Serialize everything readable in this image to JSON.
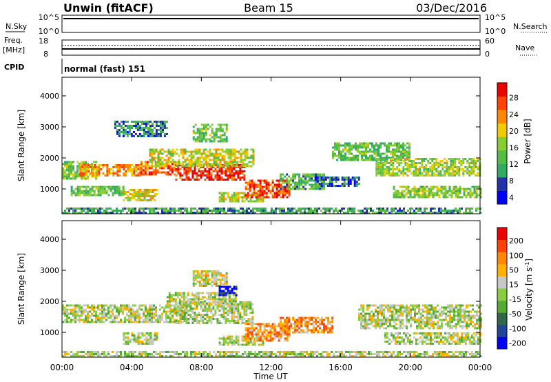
{
  "header": {
    "title": "Unwin (fitACF)",
    "beam": "Beam 15",
    "date": "03/Dec/2016"
  },
  "panels": {
    "nsky": {
      "label": "N.Sky",
      "ticks": [
        "10^5",
        "10^0"
      ],
      "right_ticks": [
        "10^5",
        "10^0"
      ],
      "right_label": "N.Search"
    },
    "freq": {
      "label_top": "Freq.",
      "label_bottom": "[MHz]",
      "ticks": [
        "18",
        "8"
      ],
      "right_ticks": [
        "60",
        "0"
      ],
      "right_label": "Nave"
    },
    "cpid": {
      "label": "CPID",
      "value": "normal (fast) 151"
    }
  },
  "colors": {
    "power_scale": [
      "#0000ff",
      "#2233aa",
      "#33aa66",
      "#55bb44",
      "#88cc33",
      "#eecc00",
      "#ff8800",
      "#ff4400",
      "#ee0000"
    ],
    "velocity_scale": [
      "#0000ff",
      "#224499",
      "#336644",
      "#55aa33",
      "#88cc44",
      "#c8c8c8",
      "#ffb000",
      "#ff8800",
      "#ff4400",
      "#ee0000"
    ]
  },
  "chart_data": [
    {
      "type": "heatmap",
      "name": "power",
      "ylabel": "Slant Range [km]",
      "yticks": [
        "4000",
        "3000",
        "2000",
        "1000"
      ],
      "ylim": [
        200,
        4600
      ],
      "colorbar": {
        "label": "Power [dB]",
        "ticks": [
          "28",
          "24",
          "20",
          "16",
          "12",
          "8",
          "4"
        ],
        "range": [
          0,
          32
        ]
      },
      "bands": [
        {
          "t0": 0.0,
          "t1": 2.0,
          "r0": 1300,
          "r1": 1900,
          "level": 0.45
        },
        {
          "t0": 1.0,
          "t1": 4.5,
          "r0": 1400,
          "r1": 1800,
          "level": 0.7
        },
        {
          "t0": 4.5,
          "t1": 6.5,
          "r0": 1450,
          "r1": 1900,
          "level": 0.8
        },
        {
          "t0": 6.5,
          "t1": 10.5,
          "r0": 1300,
          "r1": 1800,
          "level": 0.9
        },
        {
          "t0": 5.0,
          "t1": 11.0,
          "r0": 1750,
          "r1": 2300,
          "level": 0.55
        },
        {
          "t0": 7.5,
          "t1": 9.5,
          "r0": 2500,
          "r1": 3100,
          "level": 0.4
        },
        {
          "t0": 0.5,
          "t1": 3.5,
          "r0": 800,
          "r1": 1100,
          "level": 0.4
        },
        {
          "t0": 3.5,
          "t1": 5.5,
          "r0": 600,
          "r1": 1000,
          "level": 0.6
        },
        {
          "t0": 9.0,
          "t1": 11.5,
          "r0": 600,
          "r1": 900,
          "level": 0.55
        },
        {
          "t0": 10.5,
          "t1": 13.0,
          "r0": 700,
          "r1": 1300,
          "level": 0.85
        },
        {
          "t0": 12.5,
          "t1": 15.0,
          "r0": 1000,
          "r1": 1500,
          "level": 0.35
        },
        {
          "t0": 14.5,
          "t1": 17.0,
          "r0": 1100,
          "r1": 1400,
          "level": 0.2
        },
        {
          "t0": 15.5,
          "t1": 20.0,
          "r0": 1900,
          "r1": 2500,
          "level": 0.4
        },
        {
          "t0": 18.0,
          "t1": 24.0,
          "r0": 1400,
          "r1": 2000,
          "level": 0.5
        },
        {
          "t0": 19.0,
          "t1": 24.0,
          "r0": 700,
          "r1": 1100,
          "level": 0.45
        },
        {
          "t0": 3.0,
          "t1": 6.0,
          "r0": 2700,
          "r1": 3200,
          "level": 0.25
        },
        {
          "t0": 0.0,
          "t1": 24.0,
          "r0": 250,
          "r1": 400,
          "level": 0.3
        }
      ]
    },
    {
      "type": "heatmap",
      "name": "velocity",
      "ylabel": "Slant Range [km]",
      "yticks": [
        "4000",
        "3000",
        "2000",
        "1000"
      ],
      "ylim": [
        200,
        4600
      ],
      "colorbar": {
        "label": "Velocity [m s^-1]",
        "ticks": [
          "200",
          "100",
          "50",
          "15",
          "-15",
          "-50",
          "-100",
          "-200"
        ],
        "range": [
          -250,
          250
        ]
      },
      "bands": [
        {
          "t0": 0.0,
          "t1": 7.0,
          "r0": 1300,
          "r1": 1900,
          "level": 0.5
        },
        {
          "t0": 6.5,
          "t1": 11.0,
          "r0": 1300,
          "r1": 2000,
          "level": 0.5
        },
        {
          "t0": 6.0,
          "t1": 10.0,
          "r0": 1900,
          "r1": 2300,
          "level": 0.5
        },
        {
          "t0": 3.5,
          "t1": 5.5,
          "r0": 600,
          "r1": 1000,
          "level": 0.5
        },
        {
          "t0": 9.0,
          "t1": 11.5,
          "r0": 600,
          "r1": 900,
          "level": 0.5
        },
        {
          "t0": 10.5,
          "t1": 13.0,
          "r0": 700,
          "r1": 1300,
          "level": 0.72
        },
        {
          "t0": 12.5,
          "t1": 15.5,
          "r0": 1000,
          "r1": 1500,
          "level": 0.72
        },
        {
          "t0": 17.0,
          "t1": 24.0,
          "r0": 1100,
          "r1": 1900,
          "level": 0.5
        },
        {
          "t0": 18.5,
          "t1": 24.0,
          "r0": 600,
          "r1": 1000,
          "level": 0.5
        },
        {
          "t0": 7.5,
          "t1": 9.5,
          "r0": 2500,
          "r1": 3000,
          "level": 0.55
        },
        {
          "t0": 9.0,
          "t1": 10.0,
          "r0": 2200,
          "r1": 2500,
          "level": 0.05
        },
        {
          "t0": 0.0,
          "t1": 24.0,
          "r0": 250,
          "r1": 400,
          "level": 0.5
        }
      ]
    }
  ],
  "xaxis": {
    "label": "Time UT",
    "ticks": [
      "00:00",
      "04:00",
      "08:00",
      "12:00",
      "16:00",
      "20:00",
      "00:00"
    ],
    "range": [
      0,
      24
    ]
  }
}
